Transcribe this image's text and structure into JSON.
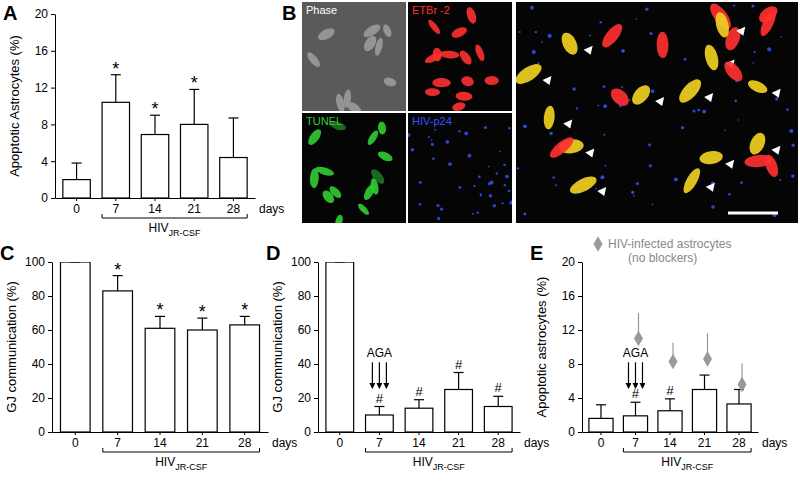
{
  "chart_data": [
    {
      "type": "bar",
      "panel": "A",
      "ylabel": "Apoptotic Astrocytes (%)",
      "xlabel": "days",
      "categories": [
        "0",
        "7",
        "14",
        "21",
        "28"
      ],
      "ylim": [
        0,
        20
      ],
      "yticks": [
        0,
        4,
        8,
        12,
        16,
        20
      ],
      "bracket": {
        "text": "HIV",
        "subscript": "JR-CSF",
        "from": "7",
        "to": "28"
      },
      "series": [
        {
          "color": "#ffffff",
          "values": [
            2.0,
            10.4,
            6.9,
            8.0,
            4.4
          ],
          "errors": [
            1.8,
            3.0,
            2.1,
            3.8,
            4.3
          ],
          "significance": [
            null,
            "*",
            "*",
            "*",
            null
          ]
        }
      ]
    },
    {
      "type": "bar",
      "panel": "C",
      "ylabel": "GJ communication (%)",
      "xlabel": "days",
      "categories": [
        "0",
        "7",
        "14",
        "21",
        "28"
      ],
      "ylim": [
        0,
        100
      ],
      "yticks": [
        0,
        20,
        40,
        60,
        80,
        100
      ],
      "bracket": {
        "text": "HIV",
        "subscript": "JR-CSF",
        "from": "7",
        "to": "28"
      },
      "series": [
        {
          "color": "#ffffff",
          "values": [
            100,
            83,
            61,
            60,
            63
          ],
          "errors": [
            0,
            9,
            7,
            7,
            5
          ],
          "significance": [
            null,
            "*",
            "*",
            "*",
            "*"
          ]
        }
      ]
    },
    {
      "type": "bar",
      "panel": "D",
      "ylabel": "GJ communication (%)",
      "xlabel": "days",
      "categories": [
        "0",
        "7",
        "14",
        "21",
        "28"
      ],
      "ylim": [
        0,
        100
      ],
      "yticks": [
        0,
        20,
        40,
        60,
        80,
        100
      ],
      "bracket": {
        "text": "HIV",
        "subscript": "JR-CSF",
        "from": "7",
        "to": "28"
      },
      "arrow_annotation": {
        "text": "AGA",
        "category": "7"
      },
      "series": [
        {
          "color": "#ffffff",
          "values": [
            100,
            10,
            14,
            25,
            15
          ],
          "errors": [
            0,
            5,
            5,
            10,
            6
          ],
          "significance": [
            null,
            "#",
            "#",
            "#",
            "#"
          ]
        }
      ]
    },
    {
      "type": "bar",
      "panel": "E",
      "ylabel": "Apoptotic astrocytes (%)",
      "xlabel": "days",
      "categories": [
        "0",
        "7",
        "14",
        "21",
        "28"
      ],
      "ylim": [
        0,
        20
      ],
      "yticks": [
        0,
        4,
        8,
        12,
        16,
        20
      ],
      "legend": "top-right",
      "bracket": {
        "text": "HIV",
        "subscript": "JR-CSF",
        "from": "7",
        "to": "28"
      },
      "arrow_annotation": {
        "text": "AGA",
        "category": "7"
      },
      "series": [
        {
          "color": "#ffffff",
          "values": [
            1.6,
            1.9,
            2.5,
            5.0,
            3.3
          ],
          "errors": [
            1.6,
            1.6,
            1.4,
            1.7,
            1.7
          ],
          "significance": [
            null,
            "#",
            "#",
            null,
            null
          ]
        },
        {
          "name": "HIV-infected astrocytes (no blockers)",
          "type": "scatter",
          "marker": "diamond",
          "color": "#999999",
          "values": [
            null,
            11.0,
            8.3,
            8.6,
            5.6
          ],
          "errors": [
            null,
            3.0,
            2.2,
            3.0,
            2.5
          ]
        }
      ]
    }
  ],
  "image_panel": {
    "panel": "B",
    "tiles": [
      {
        "label": "Phase",
        "color": "#ffffff"
      },
      {
        "label": "ETBr -2",
        "color": "#ff3030"
      },
      {
        "label": "TUNEL",
        "color": "#33cc33"
      },
      {
        "label": "HIV-p24",
        "color": "#3355ff"
      }
    ]
  }
}
